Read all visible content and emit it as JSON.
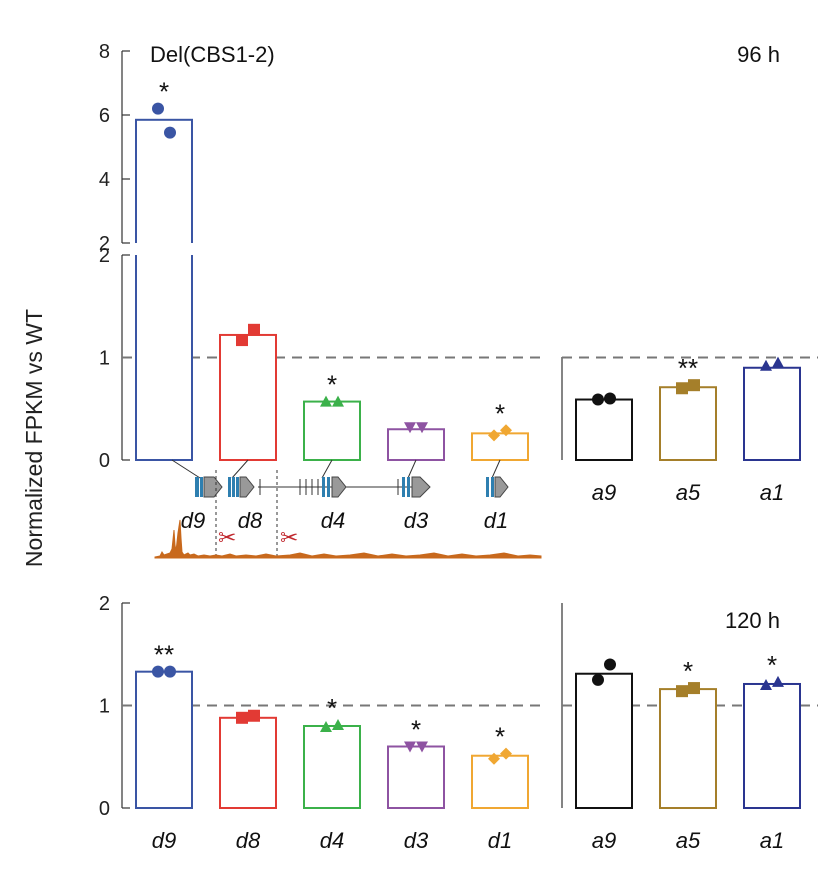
{
  "chart_data": {
    "type": "bar",
    "ylabel": "Normalized FPKM vs WT",
    "reference_line": 1,
    "colors": {
      "d9": "#3a55a4",
      "d8": "#e23a34",
      "d4": "#3bb14a",
      "d3": "#8e53a2",
      "d1": "#f0a732",
      "a9": "#111111",
      "a5": "#a57f2a",
      "a1": "#2a3590"
    },
    "markers": {
      "d9": "circle",
      "d8": "square",
      "d4": "triangle-up",
      "d3": "triangle-down",
      "d1": "diamond",
      "a9": "circle",
      "a5": "square",
      "a1": "triangle-up"
    },
    "panels": [
      {
        "title": "Del(CBS1-2)",
        "time": "96 h",
        "y_ticks_upper": [
          "2",
          "4",
          "6",
          "8"
        ],
        "y_ticks_lower": [
          "0",
          "1",
          "2"
        ],
        "ylim_lower": [
          0,
          2
        ],
        "ylim_upper": [
          2,
          8
        ],
        "left_group": {
          "categories": [
            "d9",
            "d8",
            "d4",
            "d3",
            "d1"
          ],
          "values": [
            5.85,
            1.22,
            0.57,
            0.3,
            0.26
          ],
          "points": [
            [
              6.2,
              5.45
            ],
            [
              1.17,
              1.27
            ],
            [
              0.57,
              0.57
            ],
            [
              0.32,
              0.32
            ],
            [
              0.24,
              0.29
            ]
          ],
          "significance": [
            "*",
            "",
            "*",
            "",
            "*"
          ]
        },
        "right_group": {
          "categories": [
            "a9",
            "a5",
            "a1"
          ],
          "values": [
            0.59,
            0.71,
            0.9
          ],
          "points": [
            [
              0.59,
              0.6
            ],
            [
              0.7,
              0.73
            ],
            [
              0.92,
              0.95
            ]
          ],
          "significance": [
            "",
            "**",
            ""
          ]
        }
      },
      {
        "title": "",
        "time": "120 h",
        "y_ticks": [
          "0",
          "1",
          "2"
        ],
        "ylim": [
          0,
          2
        ],
        "left_group": {
          "categories": [
            "d9",
            "d8",
            "d4",
            "d3",
            "d1"
          ],
          "values": [
            1.33,
            0.88,
            0.8,
            0.6,
            0.51
          ],
          "points": [
            [
              1.33,
              1.33
            ],
            [
              0.88,
              0.9
            ],
            [
              0.79,
              0.81
            ],
            [
              0.6,
              0.6
            ],
            [
              0.48,
              0.53
            ]
          ],
          "significance": [
            "**",
            "",
            "*",
            "*",
            "*"
          ]
        },
        "right_group": {
          "categories": [
            "a9",
            "a5",
            "a1"
          ],
          "values": [
            1.31,
            1.16,
            1.21
          ],
          "points": [
            [
              1.25,
              1.4
            ],
            [
              1.14,
              1.17
            ],
            [
              1.2,
              1.23
            ]
          ],
          "significance": [
            "",
            "*",
            "*"
          ]
        }
      }
    ],
    "annotation": {
      "gene_labels": [
        "d9",
        "d8",
        "d4",
        "d3",
        "d1"
      ],
      "description": "gene locus diagram with CBS deletion scissors and orange coverage track"
    }
  }
}
